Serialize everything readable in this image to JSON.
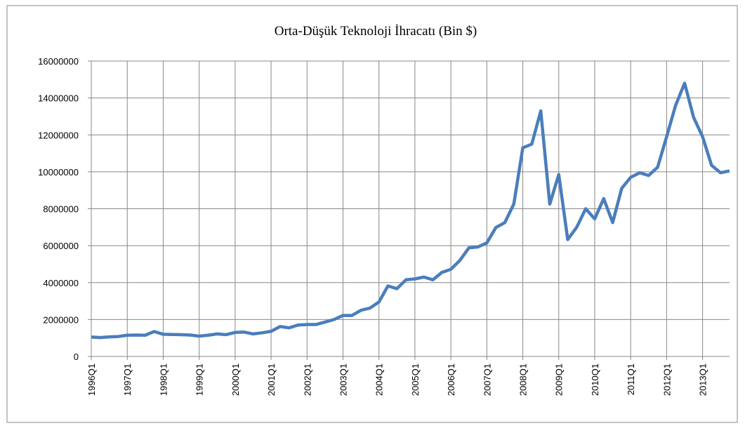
{
  "chart_data": {
    "type": "line",
    "title": "Orta-Düşük Teknoloji İhracatı (Bin $)",
    "categories": [
      "1996Q1",
      null,
      null,
      null,
      "1997Q1",
      null,
      null,
      null,
      "1998Q1",
      null,
      null,
      null,
      "1999Q1",
      null,
      null,
      null,
      "2000Q1",
      null,
      null,
      null,
      "2001Q1",
      null,
      null,
      null,
      "2002Q1",
      null,
      null,
      null,
      "2003Q1",
      null,
      null,
      null,
      "2004Q1",
      null,
      null,
      null,
      "2005Q1",
      null,
      null,
      null,
      "2006Q1",
      null,
      null,
      null,
      "2007Q1",
      null,
      null,
      null,
      "2008Q1",
      null,
      null,
      null,
      "2009Q1",
      null,
      null,
      null,
      "2010Q1",
      null,
      null,
      null,
      "2011Q1",
      null,
      null,
      null,
      "2012Q1",
      null,
      null,
      null,
      "2013Q1",
      null,
      null,
      null
    ],
    "series": [
      {
        "color": "#4a7ebb",
        "values": [
          1050000,
          1020000,
          1060000,
          1080000,
          1150000,
          1160000,
          1150000,
          1350000,
          1200000,
          1190000,
          1180000,
          1160000,
          1100000,
          1150000,
          1220000,
          1180000,
          1300000,
          1320000,
          1220000,
          1280000,
          1360000,
          1620000,
          1550000,
          1700000,
          1730000,
          1730000,
          1860000,
          2000000,
          2220000,
          2220000,
          2500000,
          2620000,
          2950000,
          3820000,
          3670000,
          4150000,
          4200000,
          4300000,
          4150000,
          4550000,
          4720000,
          5200000,
          5880000,
          5930000,
          6150000,
          6980000,
          7250000,
          8250000,
          11300000,
          11500000,
          13300000,
          8250000,
          9850000,
          6330000,
          7000000,
          8000000,
          7450000,
          8550000,
          7250000,
          9100000,
          9700000,
          9950000,
          9800000,
          10250000,
          11900000,
          13600000,
          14800000,
          12950000,
          11900000,
          10350000,
          9950000,
          10050000
        ]
      }
    ],
    "ylim": [
      0,
      16000000
    ],
    "yticks": [
      0,
      2000000,
      4000000,
      6000000,
      8000000,
      10000000,
      12000000,
      14000000,
      16000000
    ],
    "grid": true
  }
}
